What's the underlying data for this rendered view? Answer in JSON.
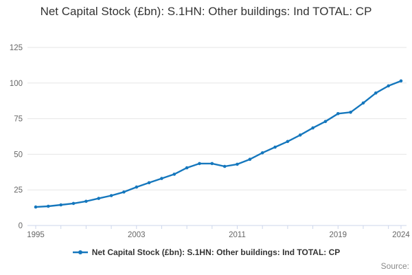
{
  "title": "Net Capital Stock (£bn): S.1HN: Other buildings: Ind TOTAL: CP",
  "legend": {
    "label": "Net Capital Stock (£bn): S.1HN: Other buildings: Ind TOTAL: CP"
  },
  "source_label": "Source:",
  "colors": {
    "line": "#1577bd",
    "grid": "#e6e6e6",
    "axis": "#ccd6eb",
    "tick_label": "#666666",
    "title_text": "#333333",
    "legend_text": "#333333"
  },
  "chart_data": {
    "type": "line",
    "title": "Net Capital Stock (£bn): S.1HN: Other buildings: Ind TOTAL: CP",
    "xlabel": "",
    "ylabel": "",
    "x": [
      1995,
      1996,
      1997,
      1998,
      1999,
      2000,
      2001,
      2002,
      2003,
      2004,
      2005,
      2006,
      2007,
      2008,
      2009,
      2010,
      2011,
      2012,
      2013,
      2014,
      2015,
      2016,
      2017,
      2018,
      2019,
      2020,
      2021,
      2022,
      2023,
      2024
    ],
    "series": [
      {
        "name": "Net Capital Stock (£bn): S.1HN: Other buildings: Ind TOTAL: CP",
        "values": [
          13,
          13.5,
          14.5,
          15.5,
          17,
          19,
          21,
          23.5,
          27,
          30,
          33,
          36,
          40.5,
          43.5,
          43.5,
          41.5,
          43,
          46.5,
          51,
          55,
          59,
          63.5,
          68.5,
          73,
          78.5,
          79.5,
          86,
          93,
          98,
          101.5
        ]
      }
    ],
    "ylim": [
      0,
      125
    ],
    "yticks": [
      0,
      25,
      50,
      75,
      100,
      125
    ],
    "xlim": [
      1995,
      2024
    ],
    "xtick_labels": [
      1995,
      2003,
      2011,
      2019,
      2024
    ],
    "xticks_minor_every": 2,
    "grid": "horizontal-only",
    "legend_position": "bottom",
    "marker": "circle"
  }
}
